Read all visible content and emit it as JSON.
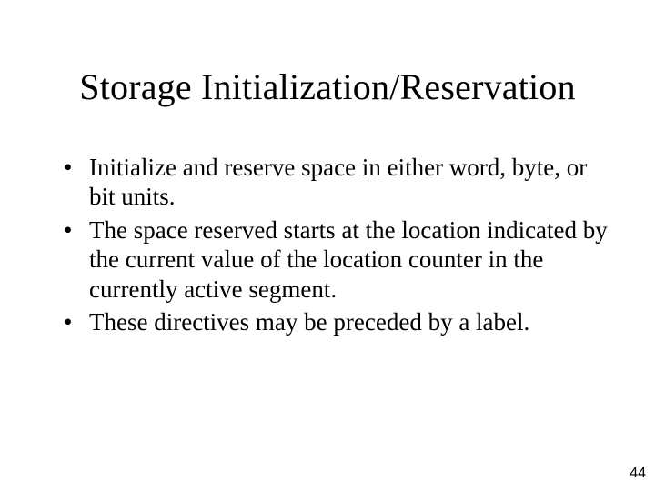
{
  "slide": {
    "title": "Storage Initialization/Reservation",
    "bullets": [
      "Initialize and reserve space in either word, byte, or bit units.",
      "The space reserved starts at the location indicated by the current value of the location counter in the currently active segment.",
      "These directives may be preceded by a label."
    ],
    "page_number": "44"
  },
  "style": {
    "background_color": "#ffffff",
    "text_color": "#000000",
    "title_fontsize": 40,
    "body_fontsize": 27,
    "pagenum_fontsize": 16,
    "font_family": "Times New Roman"
  }
}
